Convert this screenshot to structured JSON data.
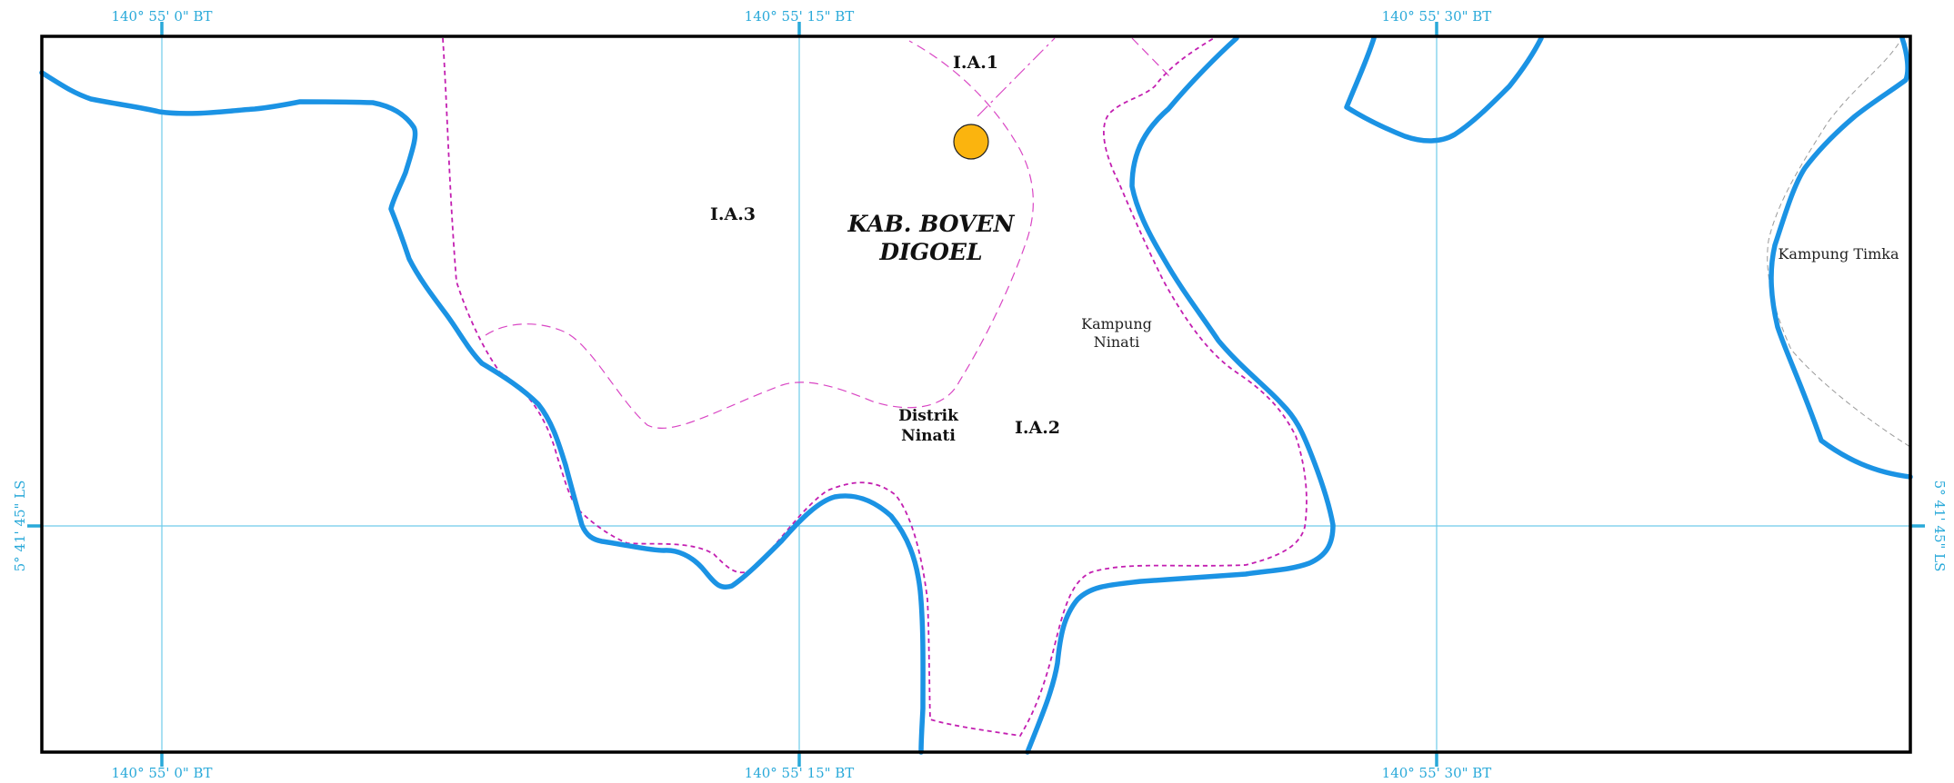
{
  "map": {
    "grid_labels": {
      "lon": [
        "140° 55' 0\" BT",
        "140° 55' 15\" BT",
        "140° 55' 30\" BT"
      ],
      "lat": [
        "5° 41' 45\" LS"
      ]
    },
    "area_labels": {
      "ia1": "I.A.1",
      "ia2": "I.A.2",
      "ia3": "I.A.3"
    },
    "regency_label": [
      "KAB. BOVEN",
      "DIGOEL"
    ],
    "district_label": [
      "Distrik",
      "Ninati"
    ],
    "village_labels": {
      "ninati": [
        "Kampung",
        "Ninati"
      ],
      "timka": "Kampung Timka"
    },
    "colors": {
      "grid": "#29a9d9",
      "river": "#1b93e4",
      "boundary": "#c31fb1",
      "marker": "#fbb40e",
      "frame": "#000000"
    },
    "marker_icon": "location-point-icon"
  }
}
